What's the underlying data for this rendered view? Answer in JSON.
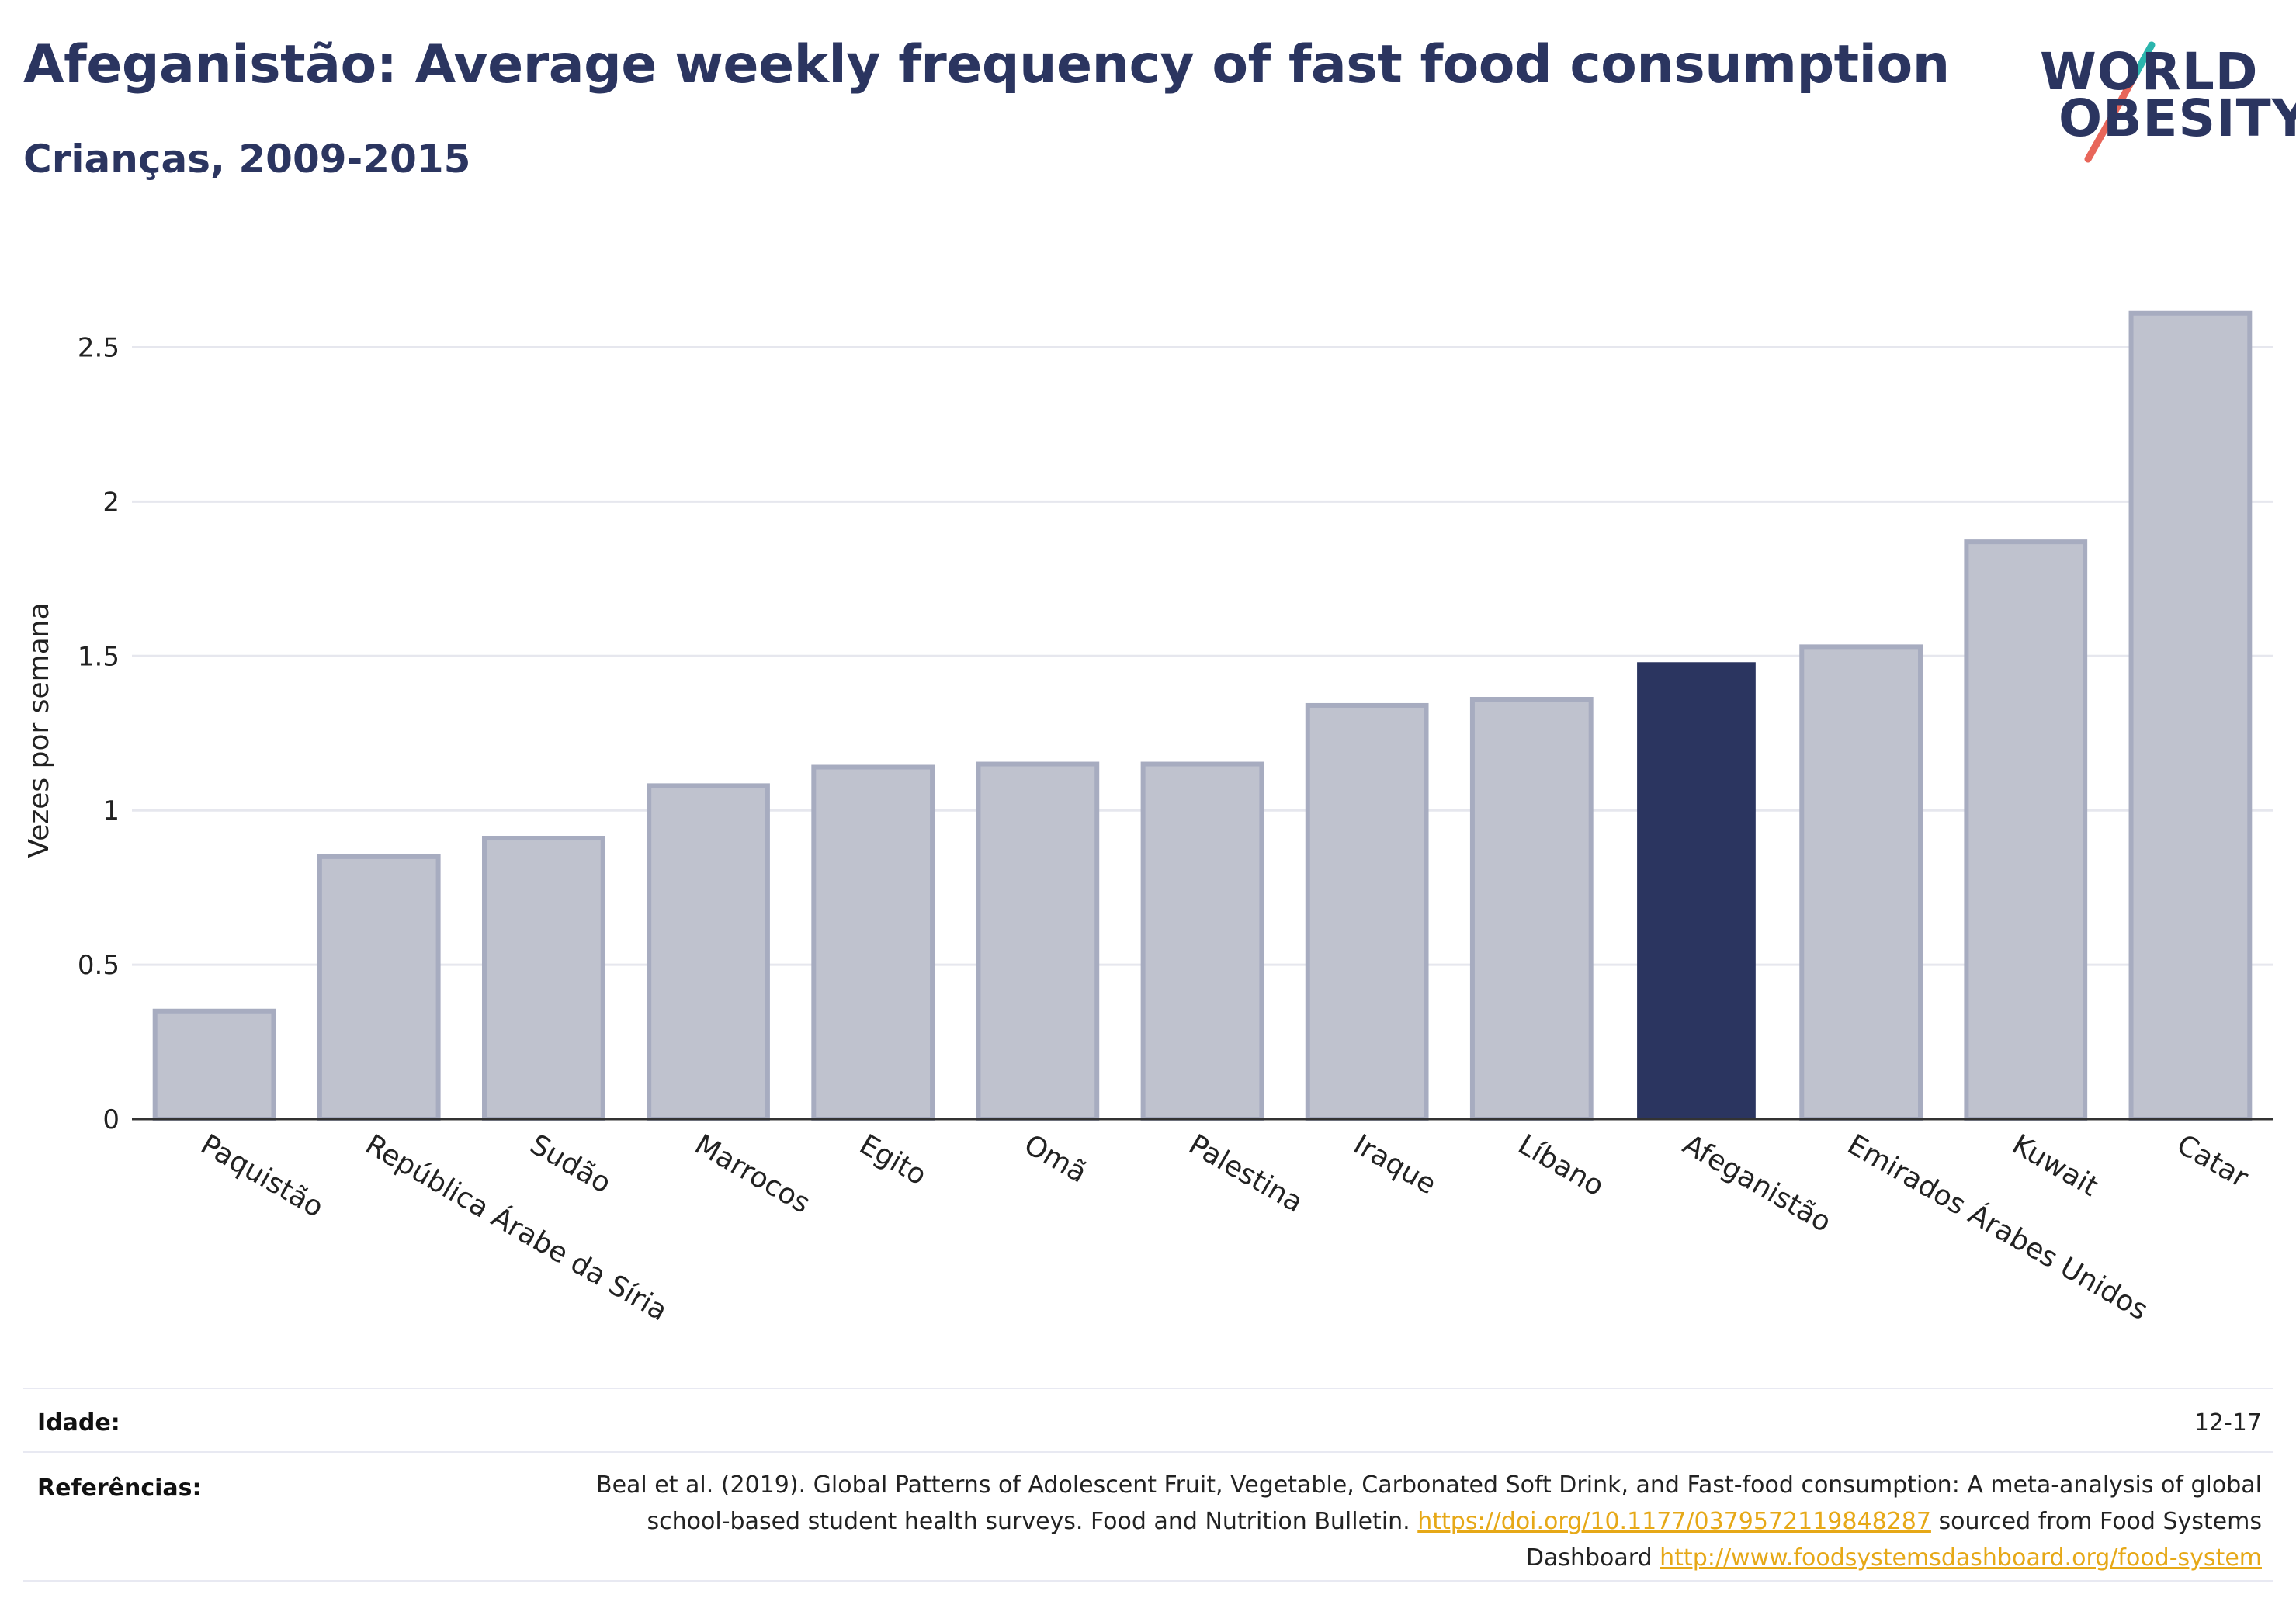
{
  "title": "Afeganistão: Average weekly frequency of fast food consumption",
  "subtitle": "Crianças, 2009-2015",
  "logo": {
    "line1": "WORLD",
    "line2": "OBESITY"
  },
  "colors": {
    "accent": "#2b3560",
    "bar_default": "#bfc2ce",
    "bar_highlight": "#2b3560",
    "link": "#e6a817",
    "logo_teal": "#2bb5ad",
    "logo_red": "#e8665a"
  },
  "chart_data": {
    "type": "bar",
    "ylabel": "Vezes por semana",
    "xlabel": "",
    "ylim": [
      0,
      2.72
    ],
    "yticks": [
      0,
      0.5,
      1,
      1.5,
      2,
      2.5
    ],
    "ytick_labels": [
      "0",
      "0.5",
      "1",
      "1.5",
      "2",
      "2.5"
    ],
    "grid": true,
    "categories": [
      "Paquistão",
      "República Árabe da Síria",
      "Sudão",
      "Marrocos",
      "Egito",
      "Omã",
      "Palestina",
      "Iraque",
      "Líbano",
      "Afeganistão",
      "Emirados Árabes Unidos",
      "Kuwait",
      "Catar"
    ],
    "values": [
      0.35,
      0.85,
      0.91,
      1.08,
      1.14,
      1.15,
      1.15,
      1.34,
      1.36,
      1.48,
      1.53,
      1.87,
      2.61
    ],
    "highlight": "Afeganistão"
  },
  "footer": {
    "age_label": "Idade:",
    "age_value": "12-17",
    "refs_label": "Referências:",
    "refs_text_1": "Beal et al. (2019). Global Patterns of Adolescent Fruit, Vegetable, Carbonated Soft Drink, and Fast-food consumption: A meta-analysis of global school-based student health surveys. Food and Nutrition Bulletin. ",
    "refs_link_1": "https://doi.org/10.1177/0379572119848287",
    "refs_text_2": " sourced from Food Systems Dashboard ",
    "refs_link_2": "http://www.foodsystemsdashboard.org/food-system"
  }
}
